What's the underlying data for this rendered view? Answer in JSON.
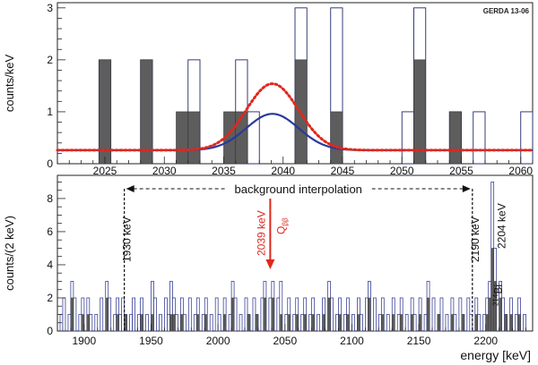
{
  "chart_data": [
    {
      "type": "bar",
      "panel": "top",
      "tag": "GERDA 13-06",
      "ylabel": "counts/keV",
      "xlabel": "",
      "xlim": [
        2021,
        2061
      ],
      "ylim": [
        0,
        3.1
      ],
      "xticks": [
        2025,
        2030,
        2035,
        2040,
        2045,
        2050,
        2055,
        2060
      ],
      "yticks": [
        0,
        1,
        2,
        3
      ],
      "bin_width_keV": 1,
      "bins_open": [
        {
          "x": 2025,
          "value": 2
        },
        {
          "x": 2028.5,
          "value": 2
        },
        {
          "x": 2032.5,
          "value": 2
        },
        {
          "x": 2036.5,
          "value": 2
        },
        {
          "x": 2037.5,
          "value": 1
        },
        {
          "x": 2041.5,
          "value": 3
        },
        {
          "x": 2044.5,
          "value": 3
        },
        {
          "x": 2050.5,
          "value": 1
        },
        {
          "x": 2051.5,
          "value": 3
        },
        {
          "x": 2054.5,
          "value": 1
        },
        {
          "x": 2056.5,
          "value": 1
        },
        {
          "x": 2060.5,
          "value": 1
        }
      ],
      "bins_filled": [
        {
          "x": 2025,
          "value": 2
        },
        {
          "x": 2028.5,
          "value": 2
        },
        {
          "x": 2031.5,
          "value": 1
        },
        {
          "x": 2032.5,
          "value": 1
        },
        {
          "x": 2035.5,
          "value": 1
        },
        {
          "x": 2036.5,
          "value": 1
        },
        {
          "x": 2041.5,
          "value": 2
        },
        {
          "x": 2044.5,
          "value": 1
        },
        {
          "x": 2051.5,
          "value": 2
        },
        {
          "x": 2054.5,
          "value": 1
        }
      ],
      "curves": [
        {
          "style": "solid",
          "color": "#2a3a9a",
          "baseline": 0.26,
          "peak_x": 2039.1,
          "peak_height": 0.7,
          "sigma": 2.2
        },
        {
          "style": "dotted",
          "color": "#e0281c",
          "baseline": 0.26,
          "peak_x": 2039.1,
          "peak_height": 1.28,
          "sigma": 2.2
        }
      ]
    },
    {
      "type": "bar",
      "panel": "bottom",
      "ylabel": "counts/(2 keV)",
      "xlabel": "energy  [keV]",
      "xlim": [
        1880,
        2235
      ],
      "ylim": [
        0,
        9.4
      ],
      "xticks": [
        1900,
        1950,
        2000,
        2050,
        2100,
        2150,
        2200
      ],
      "yticks": [
        0,
        2,
        4,
        6,
        8
      ],
      "bin_width_keV": 2,
      "open_bins": [
        [
          1883,
          1
        ],
        [
          1885,
          2
        ],
        [
          1889,
          1
        ],
        [
          1891,
          3
        ],
        [
          1893,
          2
        ],
        [
          1897,
          1
        ],
        [
          1899,
          2
        ],
        [
          1903,
          2
        ],
        [
          1905,
          1
        ],
        [
          1909,
          1
        ],
        [
          1913,
          2
        ],
        [
          1917,
          3
        ],
        [
          1919,
          2
        ],
        [
          1923,
          1
        ],
        [
          1925,
          2
        ],
        [
          1927,
          1
        ],
        [
          1929,
          2
        ],
        [
          1931,
          1
        ],
        [
          1935,
          1
        ],
        [
          1937,
          2
        ],
        [
          1941,
          1
        ],
        [
          1943,
          2
        ],
        [
          1947,
          1
        ],
        [
          1951,
          3
        ],
        [
          1953,
          2
        ],
        [
          1957,
          1
        ],
        [
          1961,
          2
        ],
        [
          1963,
          1
        ],
        [
          1965,
          3
        ],
        [
          1967,
          2
        ],
        [
          1969,
          1
        ],
        [
          1973,
          2
        ],
        [
          1975,
          1
        ],
        [
          1979,
          2
        ],
        [
          1983,
          1
        ],
        [
          1985,
          2
        ],
        [
          1989,
          1
        ],
        [
          1991,
          2
        ],
        [
          1995,
          1
        ],
        [
          1999,
          2
        ],
        [
          2001,
          1
        ],
        [
          2005,
          2
        ],
        [
          2009,
          1
        ],
        [
          2011,
          3
        ],
        [
          2013,
          2
        ],
        [
          2017,
          1
        ],
        [
          2021,
          2
        ],
        [
          2023,
          1
        ],
        [
          2027,
          2
        ],
        [
          2029,
          1
        ],
        [
          2033,
          2
        ],
        [
          2035,
          3
        ],
        [
          2039,
          2
        ],
        [
          2041,
          3
        ],
        [
          2045,
          2
        ],
        [
          2047,
          3
        ],
        [
          2051,
          1
        ],
        [
          2053,
          2
        ],
        [
          2057,
          1
        ],
        [
          2059,
          2
        ],
        [
          2063,
          1
        ],
        [
          2065,
          2
        ],
        [
          2069,
          1
        ],
        [
          2071,
          2
        ],
        [
          2075,
          1
        ],
        [
          2079,
          2
        ],
        [
          2083,
          3
        ],
        [
          2085,
          2
        ],
        [
          2089,
          1
        ],
        [
          2091,
          2
        ],
        [
          2095,
          1
        ],
        [
          2097,
          2
        ],
        [
          2101,
          1
        ],
        [
          2105,
          2
        ],
        [
          2107,
          1
        ],
        [
          2111,
          2
        ],
        [
          2113,
          3
        ],
        [
          2117,
          2
        ],
        [
          2121,
          1
        ],
        [
          2123,
          2
        ],
        [
          2127,
          1
        ],
        [
          2131,
          2
        ],
        [
          2135,
          1
        ],
        [
          2137,
          2
        ],
        [
          2141,
          1
        ],
        [
          2145,
          2
        ],
        [
          2147,
          1
        ],
        [
          2151,
          2
        ],
        [
          2155,
          1
        ],
        [
          2157,
          3
        ],
        [
          2161,
          2
        ],
        [
          2165,
          1
        ],
        [
          2167,
          2
        ],
        [
          2171,
          1
        ],
        [
          2175,
          2
        ],
        [
          2177,
          1
        ],
        [
          2181,
          2
        ],
        [
          2183,
          1
        ],
        [
          2187,
          2
        ],
        [
          2189,
          1
        ],
        [
          2193,
          2
        ],
        [
          2195,
          1
        ],
        [
          2199,
          1
        ],
        [
          2201,
          2
        ],
        [
          2203,
          3
        ],
        [
          2205,
          9
        ],
        [
          2207,
          5
        ],
        [
          2211,
          3
        ],
        [
          2213,
          2
        ],
        [
          2215,
          1
        ],
        [
          2219,
          2
        ],
        [
          2223,
          1
        ],
        [
          2225,
          2
        ],
        [
          2229,
          1
        ]
      ],
      "filled_bins": [
        [
          1891,
          2
        ],
        [
          1899,
          1
        ],
        [
          1903,
          1
        ],
        [
          1917,
          2
        ],
        [
          1925,
          1
        ],
        [
          1931,
          1
        ],
        [
          1943,
          1
        ],
        [
          1951,
          1
        ],
        [
          1965,
          1
        ],
        [
          1967,
          1
        ],
        [
          1973,
          1
        ],
        [
          1985,
          1
        ],
        [
          1991,
          1
        ],
        [
          2005,
          1
        ],
        [
          2011,
          2
        ],
        [
          2023,
          1
        ],
        [
          2029,
          1
        ],
        [
          2035,
          2
        ],
        [
          2041,
          2
        ],
        [
          2047,
          1
        ],
        [
          2053,
          1
        ],
        [
          2059,
          1
        ],
        [
          2065,
          1
        ],
        [
          2071,
          1
        ],
        [
          2079,
          1
        ],
        [
          2083,
          2
        ],
        [
          2091,
          1
        ],
        [
          2097,
          1
        ],
        [
          2105,
          1
        ],
        [
          2113,
          2
        ],
        [
          2123,
          1
        ],
        [
          2131,
          1
        ],
        [
          2137,
          1
        ],
        [
          2145,
          1
        ],
        [
          2151,
          1
        ],
        [
          2157,
          2
        ],
        [
          2165,
          1
        ],
        [
          2175,
          1
        ],
        [
          2183,
          1
        ],
        [
          2193,
          1
        ],
        [
          2201,
          1
        ],
        [
          2203,
          2
        ],
        [
          2205,
          5
        ],
        [
          2207,
          3
        ],
        [
          2211,
          2
        ],
        [
          2215,
          1
        ],
        [
          2219,
          1
        ],
        [
          2225,
          1
        ]
      ],
      "markers": [
        {
          "x": 1930,
          "label": "1930 keV",
          "style": "dashed"
        },
        {
          "x": 2190,
          "label": "2190 keV",
          "style": "dashed"
        }
      ],
      "annotations": {
        "interval": {
          "from": 1930,
          "to": 2190,
          "label": "background interpolation"
        },
        "qbb": {
          "x": 2039,
          "energy_label": "2039 keV",
          "symbol": "Q",
          "subscript": "ββ",
          "color": "#e0281c"
        },
        "line": {
          "x": 2204,
          "label": "2204 keV",
          "isotope_mass": "214",
          "isotope": "Bi"
        }
      }
    }
  ]
}
